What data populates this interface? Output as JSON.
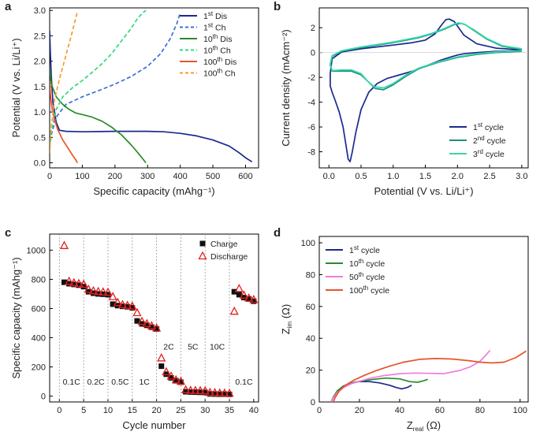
{
  "panels": {
    "a": "a",
    "b": "b",
    "c": "c",
    "d": "d"
  },
  "chart_data": [
    {
      "panel": "a",
      "type": "line",
      "xlabel": "Specific capacity (mAhg⁻¹)",
      "ylabel": "Potential (V vs. Li/Li⁺)",
      "xlim": [
        0,
        640
      ],
      "ylim": [
        -0.1,
        3.05
      ],
      "xticks": [
        0,
        100,
        200,
        300,
        400,
        500,
        600
      ],
      "yticks": [
        0.0,
        0.5,
        1.0,
        1.5,
        2.0,
        2.5,
        3.0
      ],
      "legend_position": "top-right",
      "series": [
        {
          "name": "1st Dis",
          "label_base": "1",
          "label_sup": "st",
          "label_rest": " Dis",
          "color": "#1a2a8c",
          "dash": "solid",
          "x": [
            0,
            2,
            5,
            10,
            20,
            30,
            50,
            100,
            200,
            300,
            350,
            400,
            450,
            500,
            550,
            580,
            600,
            620
          ],
          "y": [
            2.6,
            2.2,
            1.7,
            1.2,
            0.8,
            0.64,
            0.62,
            0.61,
            0.62,
            0.62,
            0.61,
            0.58,
            0.53,
            0.45,
            0.33,
            0.2,
            0.1,
            0.02
          ]
        },
        {
          "name": "1st Ch",
          "label_base": "1",
          "label_sup": "st",
          "label_rest": " Ch",
          "color": "#3b6fd8",
          "dash": "dash",
          "x": [
            0,
            5,
            20,
            50,
            100,
            150,
            200,
            250,
            300,
            340,
            370,
            390,
            400
          ],
          "y": [
            0.3,
            0.55,
            0.9,
            1.15,
            1.3,
            1.42,
            1.55,
            1.7,
            1.9,
            2.15,
            2.45,
            2.75,
            2.95
          ]
        },
        {
          "name": "10th Dis",
          "label_base": "10",
          "label_sup": "th",
          "label_rest": " Dis",
          "color": "#2a8a2a",
          "dash": "solid",
          "x": [
            0,
            5,
            20,
            40,
            60,
            80,
            100,
            130,
            160,
            190,
            220,
            250,
            270,
            285,
            295
          ],
          "y": [
            1.85,
            1.55,
            1.3,
            1.15,
            1.05,
            0.98,
            0.95,
            0.9,
            0.82,
            0.7,
            0.55,
            0.35,
            0.2,
            0.08,
            0.0
          ]
        },
        {
          "name": "10th Ch",
          "label_base": "10",
          "label_sup": "th",
          "label_rest": " Ch",
          "color": "#2fd97a",
          "dash": "dash",
          "x": [
            0,
            5,
            20,
            40,
            70,
            100,
            130,
            160,
            190,
            220,
            250,
            270,
            285,
            295
          ],
          "y": [
            0.3,
            0.6,
            1.05,
            1.3,
            1.48,
            1.62,
            1.78,
            1.95,
            2.15,
            2.4,
            2.65,
            2.85,
            2.95,
            3.0
          ]
        },
        {
          "name": "100th Dis",
          "label_base": "100",
          "label_sup": "th",
          "label_rest": " Dis",
          "color": "#e8532b",
          "dash": "solid",
          "x": [
            0,
            3,
            8,
            15,
            25,
            40,
            55,
            70,
            80,
            85
          ],
          "y": [
            1.6,
            1.3,
            1.05,
            0.85,
            0.65,
            0.45,
            0.3,
            0.15,
            0.06,
            0.0
          ]
        },
        {
          "name": "100th Ch",
          "label_base": "100",
          "label_sup": "th",
          "label_rest": " Ch",
          "color": "#f59a2e",
          "dash": "dash",
          "x": [
            0,
            5,
            15,
            30,
            45,
            60,
            70,
            80,
            85
          ],
          "y": [
            0.2,
            0.7,
            1.25,
            1.65,
            2.0,
            2.35,
            2.6,
            2.85,
            2.98
          ]
        }
      ]
    },
    {
      "panel": "b",
      "type": "line",
      "xlabel": "Potential (V vs. Li/Li⁺)",
      "ylabel": "Current density (mAcm⁻²)",
      "xlim": [
        -0.15,
        3.1
      ],
      "ylim": [
        -9.3,
        3.6
      ],
      "xticks": [
        0.0,
        0.5,
        1.0,
        1.5,
        2.0,
        2.5,
        3.0
      ],
      "yticks": [
        -8,
        -6,
        -4,
        -2,
        0,
        2
      ],
      "legend_position": "bottom-right",
      "series": [
        {
          "name": "1st cycle",
          "label_base": "1",
          "label_sup": "st",
          "label_rest": " cycle",
          "color": "#1a2a8c",
          "x": [
            3.0,
            2.6,
            2.3,
            2.1,
            2.0,
            1.9,
            1.75,
            1.6,
            1.45,
            1.3,
            1.1,
            0.9,
            0.75,
            0.62,
            0.5,
            0.42,
            0.36,
            0.33,
            0.3,
            0.27,
            0.22,
            0.16,
            0.1,
            0.05,
            0.02,
            0.02,
            0.05,
            0.2,
            0.5,
            1.0,
            1.3,
            1.5,
            1.65,
            1.75,
            1.82,
            1.87,
            1.95,
            2.1,
            2.3,
            2.6,
            3.0
          ],
          "y": [
            0.15,
            0.1,
            0.0,
            -0.1,
            -0.2,
            -0.35,
            -0.6,
            -0.9,
            -1.2,
            -1.5,
            -1.8,
            -2.1,
            -2.5,
            -3.2,
            -4.6,
            -6.4,
            -8.1,
            -8.8,
            -8.6,
            -7.6,
            -6.0,
            -4.8,
            -3.9,
            -3.2,
            -2.7,
            -1.7,
            -0.5,
            0.05,
            0.3,
            0.6,
            0.8,
            1.0,
            1.5,
            2.2,
            2.65,
            2.7,
            2.5,
            1.4,
            0.7,
            0.35,
            0.2
          ]
        },
        {
          "name": "2nd cycle",
          "label_base": "2",
          "label_sup": "nd",
          "label_rest": " cycle",
          "color": "#1b8f7f",
          "x": [
            3.0,
            2.6,
            2.3,
            2.0,
            1.7,
            1.4,
            1.2,
            1.0,
            0.85,
            0.72,
            0.62,
            0.5,
            0.35,
            0.2,
            0.05,
            0.02,
            0.05,
            0.2,
            0.5,
            1.0,
            1.4,
            1.6,
            1.8,
            1.95,
            2.05,
            2.12,
            2.25,
            2.45,
            2.7,
            3.0
          ],
          "y": [
            0.1,
            0.0,
            -0.15,
            -0.4,
            -0.8,
            -1.3,
            -1.9,
            -2.6,
            -3.0,
            -2.9,
            -2.4,
            -1.8,
            -1.5,
            -1.5,
            -1.5,
            -1.0,
            -0.3,
            0.1,
            0.4,
            0.8,
            1.2,
            1.5,
            1.9,
            2.25,
            2.35,
            2.25,
            1.8,
            1.1,
            0.5,
            0.25
          ]
        },
        {
          "name": "3rd cycle",
          "label_base": "3",
          "label_sup": "rd",
          "label_rest": " cycle",
          "color": "#35d9a8",
          "x": [
            3.0,
            2.6,
            2.3,
            2.0,
            1.7,
            1.4,
            1.2,
            1.0,
            0.85,
            0.7,
            0.6,
            0.5,
            0.35,
            0.2,
            0.05,
            0.02,
            0.05,
            0.2,
            0.5,
            1.0,
            1.4,
            1.6,
            1.8,
            1.95,
            2.02,
            2.1,
            2.25,
            2.45,
            2.7,
            3.0
          ],
          "y": [
            0.15,
            0.05,
            -0.1,
            -0.35,
            -0.75,
            -1.25,
            -1.8,
            -2.5,
            -2.85,
            -2.75,
            -2.3,
            -1.7,
            -1.4,
            -1.4,
            -1.45,
            -0.9,
            -0.25,
            0.15,
            0.45,
            0.85,
            1.25,
            1.55,
            1.95,
            2.3,
            2.4,
            2.3,
            1.85,
            1.15,
            0.55,
            0.3
          ]
        }
      ]
    },
    {
      "panel": "c",
      "type": "scatter",
      "xlabel": "Cycle number",
      "ylabel": "Specific capacity (mAhg⁻¹)",
      "xlim": [
        -2,
        41
      ],
      "ylim": [
        -40,
        1110
      ],
      "xticks": [
        0,
        5,
        10,
        15,
        20,
        25,
        30,
        35,
        40
      ],
      "yticks": [
        0,
        200,
        400,
        600,
        800,
        1000
      ],
      "legend_position": "top-right",
      "rate_boundaries": [
        0,
        5,
        10,
        15,
        20,
        25,
        30,
        35
      ],
      "rate_labels": [
        {
          "text": "0.1C",
          "x": 2.5,
          "y": 100
        },
        {
          "text": "0.2C",
          "x": 7.5,
          "y": 100
        },
        {
          "text": "0.5C",
          "x": 12.5,
          "y": 100
        },
        {
          "text": "1C",
          "x": 17.5,
          "y": 100
        },
        {
          "text": "2C",
          "x": 22.5,
          "y": 340
        },
        {
          "text": "5C",
          "x": 27.5,
          "y": 340
        },
        {
          "text": "10C",
          "x": 32.5,
          "y": 340
        },
        {
          "text": "0.1C",
          "x": 38,
          "y": 100
        }
      ],
      "series": [
        {
          "name": "Charge",
          "marker": "square",
          "color": "#111111",
          "x": [
            1,
            2,
            3,
            4,
            5,
            6,
            7,
            8,
            9,
            10,
            11,
            12,
            13,
            14,
            15,
            16,
            17,
            18,
            19,
            20,
            21,
            22,
            23,
            24,
            25,
            26,
            27,
            28,
            29,
            30,
            31,
            32,
            33,
            34,
            35,
            36,
            37,
            38,
            39,
            40
          ],
          "y": [
            780,
            770,
            765,
            760,
            750,
            715,
            705,
            700,
            698,
            695,
            630,
            620,
            615,
            612,
            605,
            515,
            495,
            485,
            472,
            460,
            205,
            150,
            125,
            105,
            95,
            30,
            28,
            27,
            26,
            25,
            15,
            14,
            13,
            13,
            12,
            715,
            695,
            675,
            665,
            650
          ]
        },
        {
          "name": "Discharge",
          "marker": "triangle",
          "color": "#e02020",
          "x": [
            1,
            2,
            3,
            4,
            5,
            6,
            7,
            8,
            9,
            10,
            11,
            12,
            13,
            14,
            15,
            16,
            17,
            18,
            19,
            20,
            21,
            22,
            23,
            24,
            25,
            26,
            27,
            28,
            29,
            30,
            31,
            32,
            33,
            34,
            35,
            36,
            37,
            38,
            39,
            40
          ],
          "y": [
            1030,
            785,
            775,
            770,
            765,
            730,
            720,
            715,
            712,
            710,
            680,
            640,
            625,
            620,
            615,
            570,
            510,
            495,
            480,
            465,
            260,
            165,
            135,
            110,
            100,
            42,
            38,
            37,
            36,
            35,
            24,
            22,
            20,
            19,
            18,
            580,
            735,
            690,
            670,
            660
          ]
        }
      ]
    },
    {
      "panel": "d",
      "type": "line",
      "xlabel": "Zreal (Ω)",
      "ylabel": "Zim (Ω)",
      "xlim": [
        0,
        104
      ],
      "ylim": [
        0,
        104
      ],
      "xticks": [
        0,
        20,
        40,
        60,
        80,
        100
      ],
      "yticks": [
        0,
        20,
        40,
        60,
        80,
        100
      ],
      "legend_position": "top-left",
      "series": [
        {
          "name": "1st cycle",
          "label_base": "1",
          "label_sup": "st",
          "label_rest": " cycle",
          "color": "#1a2a8c",
          "x": [
            6,
            7,
            9,
            12,
            16,
            20,
            25,
            30,
            35,
            38,
            41,
            44,
            46
          ],
          "y": [
            0,
            3,
            7,
            10,
            12,
            12.8,
            12.8,
            12,
            10.5,
            9.2,
            8.2,
            9.2,
            10.5
          ]
        },
        {
          "name": "10th cycle",
          "label_base": "10",
          "label_sup": "th",
          "label_rest": " cycle",
          "color": "#2a8a2a",
          "x": [
            6,
            7,
            9,
            12,
            16,
            20,
            26,
            33,
            40,
            45,
            49,
            52,
            54
          ],
          "y": [
            0,
            3,
            7,
            10,
            12,
            13,
            14,
            15,
            14.5,
            12.8,
            12.4,
            13.3,
            14.2
          ]
        },
        {
          "name": "50th cycle",
          "label_base": "50",
          "label_sup": "th",
          "label_rest": " cycle",
          "color": "#f07ae0",
          "x": [
            6,
            7,
            9,
            12,
            16,
            20,
            25,
            32,
            40,
            48,
            55,
            62,
            70,
            75,
            80,
            83,
            85
          ],
          "y": [
            0,
            2.5,
            6,
            9,
            11.5,
            13,
            14.8,
            16.5,
            17.8,
            18.2,
            18,
            17.8,
            19.8,
            22,
            25.5,
            29.5,
            32.5
          ]
        },
        {
          "name": "100th cycle",
          "label_base": "100",
          "label_sup": "th",
          "label_rest": " cycle",
          "color": "#e8532b",
          "x": [
            7,
            8,
            10,
            13,
            17,
            22,
            28,
            35,
            42,
            50,
            58,
            66,
            74,
            80,
            86,
            92,
            98,
            103
          ],
          "y": [
            0,
            3,
            7,
            10.5,
            13.5,
            16.5,
            19.5,
            22.5,
            25,
            26.8,
            27.3,
            27,
            26,
            25,
            24.5,
            25,
            28,
            32
          ]
        }
      ]
    }
  ]
}
